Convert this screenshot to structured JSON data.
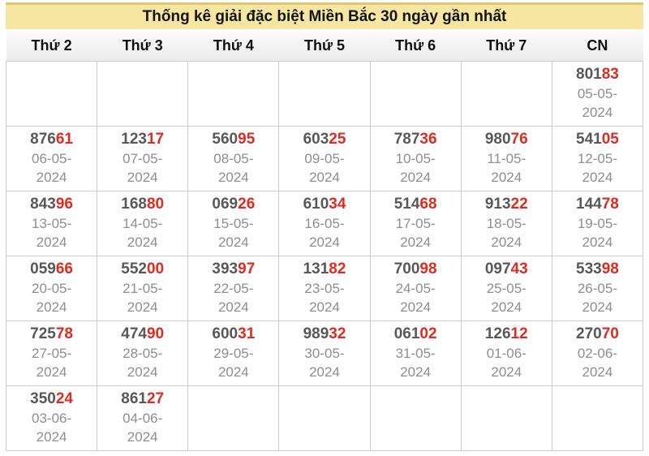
{
  "title": "Thống kê giải đặc biệt Miền Bắc 30 ngày gần nhất",
  "weekdays": [
    "Thứ 2",
    "Thứ 3",
    "Thứ 4",
    "Thứ 5",
    "Thứ 6",
    "Thứ 7",
    "CN"
  ],
  "colors": {
    "title_bg": "#F7E6A2",
    "title_stripe": "#E5C56E",
    "border_color": "#CCCCCC",
    "number_dark": "#58585A",
    "number_red": "#E02B20",
    "date_gray": "#8E8E8E"
  },
  "rows": [
    [
      null,
      null,
      null,
      null,
      null,
      null,
      {
        "number": "80183",
        "black": "801",
        "red": "83",
        "date": "05-05-\n2024"
      }
    ],
    [
      {
        "number": "87661",
        "black": "876",
        "red": "61",
        "date": "06-05-\n2024"
      },
      {
        "number": "12317",
        "black": "123",
        "red": "17",
        "date": "07-05-\n2024"
      },
      {
        "number": "56095",
        "black": "560",
        "red": "95",
        "date": "08-05-\n2024"
      },
      {
        "number": "60325",
        "black": "603",
        "red": "25",
        "date": "09-05-\n2024"
      },
      {
        "number": "78736",
        "black": "787",
        "red": "36",
        "date": "10-05-\n2024"
      },
      {
        "number": "98076",
        "black": "980",
        "red": "76",
        "date": "11-05-\n2024"
      },
      {
        "number": "54105",
        "black": "541",
        "red": "05",
        "date": "12-05-\n2024"
      }
    ],
    [
      {
        "number": "84396",
        "black": "843",
        "red": "96",
        "date": "13-05-\n2024"
      },
      {
        "number": "16880",
        "black": "168",
        "red": "80",
        "date": "14-05-\n2024"
      },
      {
        "number": "06926",
        "black": "069",
        "red": "26",
        "date": "15-05-\n2024"
      },
      {
        "number": "61034",
        "black": "610",
        "red": "34",
        "date": "16-05-\n2024"
      },
      {
        "number": "51468",
        "black": "514",
        "red": "68",
        "date": "17-05-\n2024"
      },
      {
        "number": "91322",
        "black": "913",
        "red": "22",
        "date": "18-05-\n2024"
      },
      {
        "number": "14478",
        "black": "144",
        "red": "78",
        "date": "19-05-\n2024"
      }
    ],
    [
      {
        "number": "05966",
        "black": "059",
        "red": "66",
        "date": "20-05-\n2024"
      },
      {
        "number": "55200",
        "black": "552",
        "red": "00",
        "date": "21-05-\n2024"
      },
      {
        "number": "39397",
        "black": "393",
        "red": "97",
        "date": "22-05-\n2024"
      },
      {
        "number": "13182",
        "black": "131",
        "red": "82",
        "date": "23-05-\n2024"
      },
      {
        "number": "70098",
        "black": "700",
        "red": "98",
        "date": "24-05-\n2024"
      },
      {
        "number": "09743",
        "black": "097",
        "red": "43",
        "date": "25-05-\n2024"
      },
      {
        "number": "53398",
        "black": "533",
        "red": "98",
        "date": "26-05-\n2024"
      }
    ],
    [
      {
        "number": "72578",
        "black": "725",
        "red": "78",
        "date": "27-05-\n2024"
      },
      {
        "number": "47490",
        "black": "474",
        "red": "90",
        "date": "28-05-\n2024"
      },
      {
        "number": "60031",
        "black": "600",
        "red": "31",
        "date": "29-05-\n2024"
      },
      {
        "number": "98932",
        "black": "989",
        "red": "32",
        "date": "30-05-\n2024"
      },
      {
        "number": "06102",
        "black": "061",
        "red": "02",
        "date": "31-05-\n2024"
      },
      {
        "number": "12612",
        "black": "126",
        "red": "12",
        "date": "01-06-\n2024"
      },
      {
        "number": "27070",
        "black": "270",
        "red": "70",
        "date": "02-06-\n2024"
      }
    ],
    [
      {
        "number": "35024",
        "black": "350",
        "red": "24",
        "date": "03-06-\n2024"
      },
      {
        "number": "86127",
        "black": "861",
        "red": "27",
        "date": "04-06-\n2024"
      },
      null,
      null,
      null,
      null,
      null
    ]
  ]
}
